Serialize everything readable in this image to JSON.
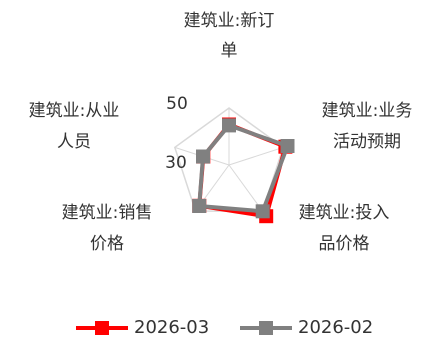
{
  "chart_data": {
    "type": "radar",
    "title": "",
    "categories": [
      [
        "建筑业:新订",
        "单"
      ],
      [
        "建筑业:业务",
        "活动预期"
      ],
      [
        "建筑业:投入",
        "品价格"
      ],
      [
        "建筑业:销售",
        "价格"
      ],
      [
        "建筑业:从业",
        "人员"
      ]
    ],
    "radial_ticks": [
      "30",
      "50"
    ],
    "range": [
      30,
      50
    ],
    "grid": true,
    "legend_position": "bottom",
    "series": [
      {
        "name": "2026-03",
        "color": "#ff0000",
        "values": [
          44.2,
          50.8,
          52.2,
          47.7,
          39.5
        ]
      },
      {
        "name": "2026-02",
        "color": "#808080",
        "values": [
          43.9,
          51.6,
          50.1,
          47.8,
          39.6
        ]
      }
    ]
  }
}
